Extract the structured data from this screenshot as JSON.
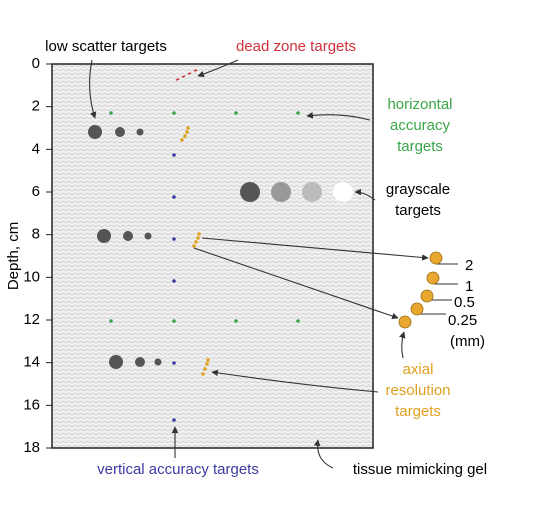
{
  "axis": {
    "label": "Depth, cm",
    "ticks": [
      0,
      2,
      4,
      6,
      8,
      10,
      12,
      14,
      16,
      18
    ]
  },
  "labels": {
    "low_scatter": "low scatter targets",
    "dead_zone": "dead zone targets",
    "horizontal_accuracy": [
      "horizontal",
      "accuracy",
      "targets"
    ],
    "grayscale": [
      "grayscale",
      "targets"
    ],
    "axial_sizes": [
      "2",
      "1",
      "0.5",
      "0.25",
      "(mm)"
    ],
    "axial_resolution": [
      "axial",
      "resolution",
      "targets"
    ],
    "tissue_gel": "tissue mimicking gel",
    "vertical_accuracy": "vertical accuracy targets"
  }
}
